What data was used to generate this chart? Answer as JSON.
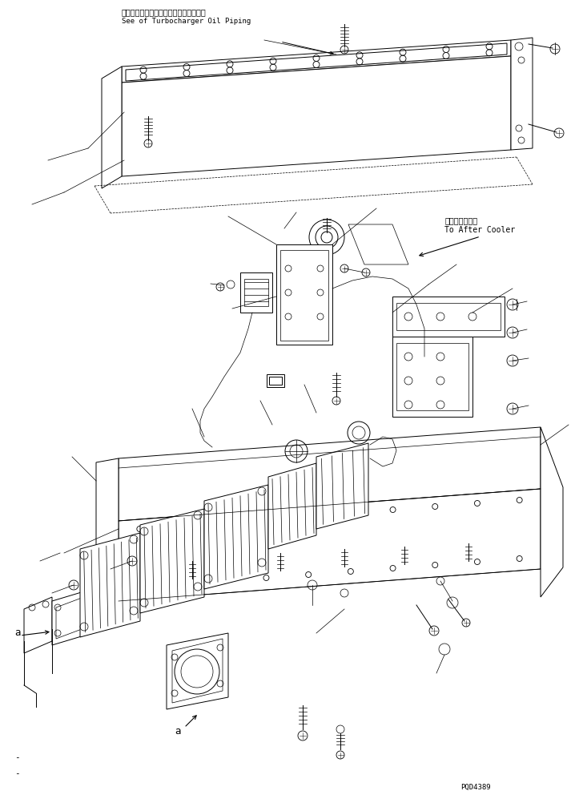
{
  "bg_color": "#ffffff",
  "line_color": "#000000",
  "fig_width": 7.23,
  "fig_height": 9.92,
  "dpi": 100,
  "annotation_top_jp": "ターボチャージャオイルパイピング参照",
  "annotation_top_en": "See of Turbocharger Oil Piping",
  "annotation_right_jp": "アフタクーラヘ",
  "annotation_right_en": "To After Cooler",
  "label_a": "a",
  "part_number": "PQD4389"
}
